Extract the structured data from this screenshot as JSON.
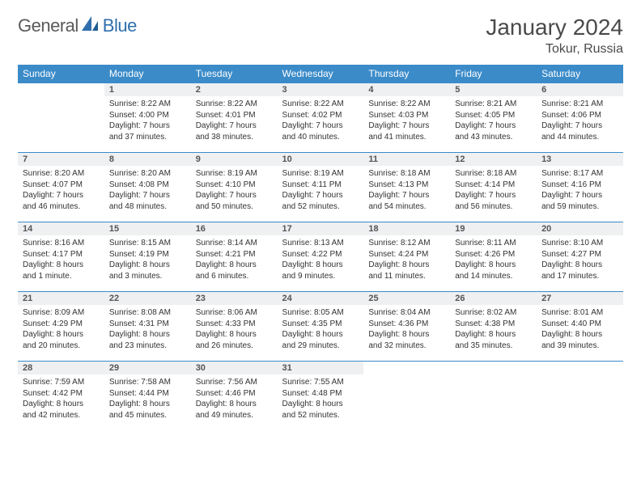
{
  "logo": {
    "general": "General",
    "blue": "Blue"
  },
  "title": "January 2024",
  "location": "Tokur, Russia",
  "dayHeaders": [
    "Sunday",
    "Monday",
    "Tuesday",
    "Wednesday",
    "Thursday",
    "Friday",
    "Saturday"
  ],
  "colors": {
    "headerBg": "#3b8bc9",
    "headerText": "#ffffff",
    "dayBarBg": "#eef0f2",
    "borderTop": "#3b8bc9",
    "text": "#333333",
    "titleText": "#4a4a4a"
  },
  "layout": {
    "columns": 7,
    "rows": 5,
    "cellHeightPx": 86
  },
  "weeks": [
    [
      {
        "day": "",
        "lines": []
      },
      {
        "day": "1",
        "lines": [
          "Sunrise: 8:22 AM",
          "Sunset: 4:00 PM",
          "Daylight: 7 hours",
          "and 37 minutes."
        ]
      },
      {
        "day": "2",
        "lines": [
          "Sunrise: 8:22 AM",
          "Sunset: 4:01 PM",
          "Daylight: 7 hours",
          "and 38 minutes."
        ]
      },
      {
        "day": "3",
        "lines": [
          "Sunrise: 8:22 AM",
          "Sunset: 4:02 PM",
          "Daylight: 7 hours",
          "and 40 minutes."
        ]
      },
      {
        "day": "4",
        "lines": [
          "Sunrise: 8:22 AM",
          "Sunset: 4:03 PM",
          "Daylight: 7 hours",
          "and 41 minutes."
        ]
      },
      {
        "day": "5",
        "lines": [
          "Sunrise: 8:21 AM",
          "Sunset: 4:05 PM",
          "Daylight: 7 hours",
          "and 43 minutes."
        ]
      },
      {
        "day": "6",
        "lines": [
          "Sunrise: 8:21 AM",
          "Sunset: 4:06 PM",
          "Daylight: 7 hours",
          "and 44 minutes."
        ]
      }
    ],
    [
      {
        "day": "7",
        "lines": [
          "Sunrise: 8:20 AM",
          "Sunset: 4:07 PM",
          "Daylight: 7 hours",
          "and 46 minutes."
        ]
      },
      {
        "day": "8",
        "lines": [
          "Sunrise: 8:20 AM",
          "Sunset: 4:08 PM",
          "Daylight: 7 hours",
          "and 48 minutes."
        ]
      },
      {
        "day": "9",
        "lines": [
          "Sunrise: 8:19 AM",
          "Sunset: 4:10 PM",
          "Daylight: 7 hours",
          "and 50 minutes."
        ]
      },
      {
        "day": "10",
        "lines": [
          "Sunrise: 8:19 AM",
          "Sunset: 4:11 PM",
          "Daylight: 7 hours",
          "and 52 minutes."
        ]
      },
      {
        "day": "11",
        "lines": [
          "Sunrise: 8:18 AM",
          "Sunset: 4:13 PM",
          "Daylight: 7 hours",
          "and 54 minutes."
        ]
      },
      {
        "day": "12",
        "lines": [
          "Sunrise: 8:18 AM",
          "Sunset: 4:14 PM",
          "Daylight: 7 hours",
          "and 56 minutes."
        ]
      },
      {
        "day": "13",
        "lines": [
          "Sunrise: 8:17 AM",
          "Sunset: 4:16 PM",
          "Daylight: 7 hours",
          "and 59 minutes."
        ]
      }
    ],
    [
      {
        "day": "14",
        "lines": [
          "Sunrise: 8:16 AM",
          "Sunset: 4:17 PM",
          "Daylight: 8 hours",
          "and 1 minute."
        ]
      },
      {
        "day": "15",
        "lines": [
          "Sunrise: 8:15 AM",
          "Sunset: 4:19 PM",
          "Daylight: 8 hours",
          "and 3 minutes."
        ]
      },
      {
        "day": "16",
        "lines": [
          "Sunrise: 8:14 AM",
          "Sunset: 4:21 PM",
          "Daylight: 8 hours",
          "and 6 minutes."
        ]
      },
      {
        "day": "17",
        "lines": [
          "Sunrise: 8:13 AM",
          "Sunset: 4:22 PM",
          "Daylight: 8 hours",
          "and 9 minutes."
        ]
      },
      {
        "day": "18",
        "lines": [
          "Sunrise: 8:12 AM",
          "Sunset: 4:24 PM",
          "Daylight: 8 hours",
          "and 11 minutes."
        ]
      },
      {
        "day": "19",
        "lines": [
          "Sunrise: 8:11 AM",
          "Sunset: 4:26 PM",
          "Daylight: 8 hours",
          "and 14 minutes."
        ]
      },
      {
        "day": "20",
        "lines": [
          "Sunrise: 8:10 AM",
          "Sunset: 4:27 PM",
          "Daylight: 8 hours",
          "and 17 minutes."
        ]
      }
    ],
    [
      {
        "day": "21",
        "lines": [
          "Sunrise: 8:09 AM",
          "Sunset: 4:29 PM",
          "Daylight: 8 hours",
          "and 20 minutes."
        ]
      },
      {
        "day": "22",
        "lines": [
          "Sunrise: 8:08 AM",
          "Sunset: 4:31 PM",
          "Daylight: 8 hours",
          "and 23 minutes."
        ]
      },
      {
        "day": "23",
        "lines": [
          "Sunrise: 8:06 AM",
          "Sunset: 4:33 PM",
          "Daylight: 8 hours",
          "and 26 minutes."
        ]
      },
      {
        "day": "24",
        "lines": [
          "Sunrise: 8:05 AM",
          "Sunset: 4:35 PM",
          "Daylight: 8 hours",
          "and 29 minutes."
        ]
      },
      {
        "day": "25",
        "lines": [
          "Sunrise: 8:04 AM",
          "Sunset: 4:36 PM",
          "Daylight: 8 hours",
          "and 32 minutes."
        ]
      },
      {
        "day": "26",
        "lines": [
          "Sunrise: 8:02 AM",
          "Sunset: 4:38 PM",
          "Daylight: 8 hours",
          "and 35 minutes."
        ]
      },
      {
        "day": "27",
        "lines": [
          "Sunrise: 8:01 AM",
          "Sunset: 4:40 PM",
          "Daylight: 8 hours",
          "and 39 minutes."
        ]
      }
    ],
    [
      {
        "day": "28",
        "lines": [
          "Sunrise: 7:59 AM",
          "Sunset: 4:42 PM",
          "Daylight: 8 hours",
          "and 42 minutes."
        ]
      },
      {
        "day": "29",
        "lines": [
          "Sunrise: 7:58 AM",
          "Sunset: 4:44 PM",
          "Daylight: 8 hours",
          "and 45 minutes."
        ]
      },
      {
        "day": "30",
        "lines": [
          "Sunrise: 7:56 AM",
          "Sunset: 4:46 PM",
          "Daylight: 8 hours",
          "and 49 minutes."
        ]
      },
      {
        "day": "31",
        "lines": [
          "Sunrise: 7:55 AM",
          "Sunset: 4:48 PM",
          "Daylight: 8 hours",
          "and 52 minutes."
        ]
      },
      {
        "day": "",
        "lines": []
      },
      {
        "day": "",
        "lines": []
      },
      {
        "day": "",
        "lines": []
      }
    ]
  ]
}
